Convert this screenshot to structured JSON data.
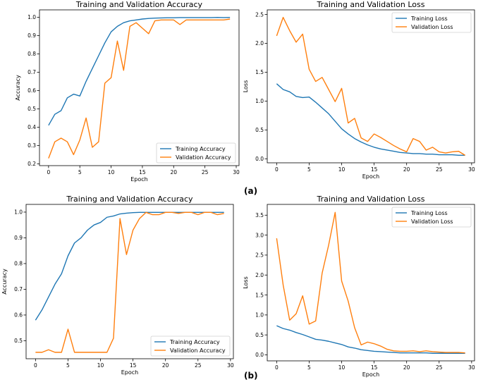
{
  "colors": {
    "training": "#1f77b4",
    "validation": "#ff7f0e"
  },
  "panel_labels": [
    "(a)",
    "(b)"
  ],
  "chart_data": [
    {
      "type": "line",
      "title": "Training and Validation Accuracy",
      "xlabel": "Epoch",
      "ylabel": "Accuracy",
      "xlim": [
        -1.45,
        30.45
      ],
      "ylim": [
        0.19,
        1.04
      ],
      "xticks": [
        0,
        5,
        10,
        15,
        20,
        25,
        30
      ],
      "yticks": [
        0.2,
        0.3,
        0.4,
        0.5,
        0.6,
        0.7,
        0.8,
        0.9,
        1.0
      ],
      "ytick_labels": [
        "0.2",
        "0.3",
        "0.4",
        "0.5",
        "0.6",
        "0.7",
        "0.8",
        "0.9",
        "1.0"
      ],
      "legend": "lower right",
      "series": [
        {
          "name": "Training Accuracy",
          "values": [
            0.41,
            0.47,
            0.49,
            0.56,
            0.58,
            0.57,
            0.65,
            0.72,
            0.79,
            0.86,
            0.92,
            0.95,
            0.97,
            0.98,
            0.985,
            0.99,
            0.993,
            0.995,
            0.996,
            0.997,
            0.997,
            0.998,
            0.998,
            0.998,
            0.998,
            0.998,
            0.998,
            0.999,
            0.998,
            0.999
          ]
        },
        {
          "name": "Validation Accuracy",
          "values": [
            0.23,
            0.32,
            0.34,
            0.32,
            0.25,
            0.33,
            0.45,
            0.29,
            0.32,
            0.64,
            0.67,
            0.87,
            0.71,
            0.95,
            0.97,
            0.94,
            0.91,
            0.98,
            0.985,
            0.985,
            0.985,
            0.96,
            0.985,
            0.985,
            0.985,
            0.985,
            0.985,
            0.985,
            0.985,
            0.99
          ]
        }
      ]
    },
    {
      "type": "line",
      "title": "Training and Validation Loss",
      "xlabel": "Epoch",
      "ylabel": "Loss",
      "xlim": [
        -1.45,
        30.45
      ],
      "ylim": [
        -0.07,
        2.58
      ],
      "xticks": [
        0,
        5,
        10,
        15,
        20,
        25,
        30
      ],
      "yticks": [
        0.0,
        0.5,
        1.0,
        1.5,
        2.0,
        2.5
      ],
      "ytick_labels": [
        "0.0",
        "0.5",
        "1.0",
        "1.5",
        "2.0",
        "2.5"
      ],
      "legend": "upper right",
      "series": [
        {
          "name": "Training Loss",
          "values": [
            1.3,
            1.2,
            1.16,
            1.08,
            1.06,
            1.07,
            0.98,
            0.88,
            0.78,
            0.65,
            0.52,
            0.43,
            0.35,
            0.29,
            0.24,
            0.2,
            0.17,
            0.15,
            0.13,
            0.11,
            0.1,
            0.09,
            0.09,
            0.08,
            0.08,
            0.07,
            0.07,
            0.07,
            0.06,
            0.06
          ]
        },
        {
          "name": "Validation Loss",
          "values": [
            2.13,
            2.45,
            2.22,
            2.02,
            2.16,
            1.55,
            1.34,
            1.41,
            1.2,
            0.99,
            1.22,
            0.62,
            0.7,
            0.36,
            0.3,
            0.43,
            0.37,
            0.3,
            0.23,
            0.17,
            0.12,
            0.35,
            0.3,
            0.15,
            0.2,
            0.12,
            0.1,
            0.12,
            0.13,
            0.06
          ]
        }
      ]
    },
    {
      "type": "line",
      "title": "Training and Validation Accuracy",
      "xlabel": "Epoch",
      "ylabel": "Accuracy",
      "xlim": [
        -1.45,
        30.45
      ],
      "ylim": [
        0.43,
        1.03
      ],
      "xticks": [
        0,
        5,
        10,
        15,
        20,
        25,
        30
      ],
      "yticks": [
        0.5,
        0.6,
        0.7,
        0.8,
        0.9,
        1.0
      ],
      "ytick_labels": [
        "0.5",
        "0.6",
        "0.7",
        "0.8",
        "0.9",
        "1.0"
      ],
      "legend": "lower right",
      "series": [
        {
          "name": "Training Accuracy",
          "values": [
            0.58,
            0.62,
            0.67,
            0.72,
            0.76,
            0.83,
            0.88,
            0.9,
            0.93,
            0.95,
            0.96,
            0.98,
            0.985,
            0.993,
            0.996,
            0.998,
            0.999,
            0.999,
            0.999,
            0.999,
            0.999,
            0.999,
            0.999,
            0.999,
            0.999,
            0.999,
            0.999,
            0.999,
            0.999,
            0.999
          ]
        },
        {
          "name": "Validation Accuracy",
          "values": [
            0.455,
            0.455,
            0.465,
            0.455,
            0.455,
            0.545,
            0.455,
            0.455,
            0.455,
            0.455,
            0.455,
            0.455,
            0.51,
            0.975,
            0.835,
            0.93,
            0.975,
            0.999,
            0.99,
            0.99,
            0.999,
            0.999,
            0.995,
            0.999,
            0.999,
            0.99,
            0.999,
            0.999,
            0.99,
            0.995
          ]
        }
      ]
    },
    {
      "type": "line",
      "title": "Training and Validation Loss",
      "xlabel": "Epoch",
      "ylabel": "Loss",
      "xlim": [
        -1.45,
        30.45
      ],
      "ylim": [
        -0.15,
        3.77
      ],
      "xticks": [
        0,
        5,
        10,
        15,
        20,
        25,
        30
      ],
      "yticks": [
        0.0,
        0.5,
        1.0,
        1.5,
        2.0,
        2.5,
        3.0,
        3.5
      ],
      "ytick_labels": [
        "0.0",
        "0.5",
        "1.0",
        "1.5",
        "2.0",
        "2.5",
        "3.0",
        "3.5"
      ],
      "legend": "upper right",
      "series": [
        {
          "name": "Training Loss",
          "values": [
            0.73,
            0.66,
            0.62,
            0.56,
            0.51,
            0.45,
            0.39,
            0.37,
            0.34,
            0.3,
            0.26,
            0.2,
            0.17,
            0.13,
            0.11,
            0.09,
            0.08,
            0.07,
            0.06,
            0.05,
            0.05,
            0.05,
            0.05,
            0.05,
            0.04,
            0.04,
            0.04,
            0.04,
            0.04,
            0.04
          ]
        },
        {
          "name": "Validation Loss",
          "values": [
            2.92,
            1.75,
            0.87,
            1.03,
            1.48,
            0.77,
            0.85,
            2.05,
            2.75,
            3.57,
            1.85,
            1.35,
            0.68,
            0.25,
            0.32,
            0.28,
            0.22,
            0.14,
            0.1,
            0.09,
            0.09,
            0.1,
            0.08,
            0.1,
            0.08,
            0.07,
            0.06,
            0.06,
            0.06,
            0.05
          ]
        }
      ]
    }
  ]
}
